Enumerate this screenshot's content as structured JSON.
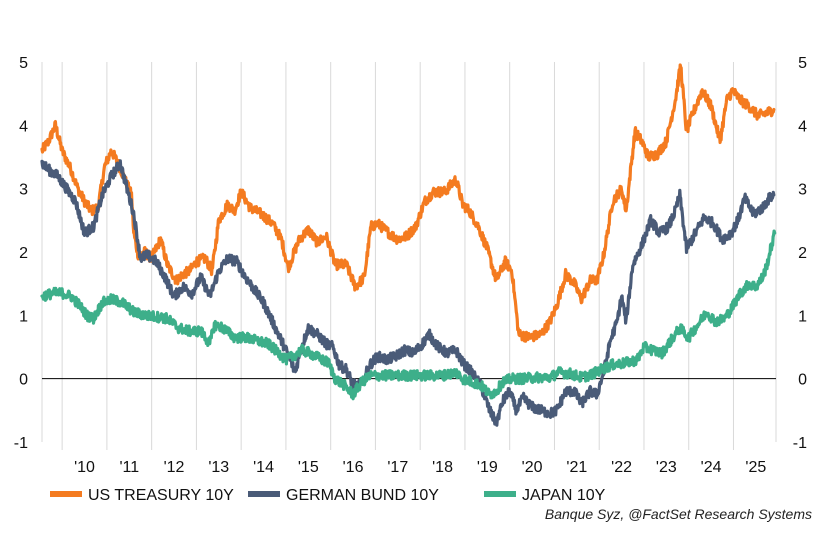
{
  "chart_data": {
    "type": "line",
    "title": "",
    "xlabel": "",
    "ylabel": "",
    "ylim": [
      -1,
      5
    ],
    "xlim": [
      2009.55,
      2025.95
    ],
    "y_ticks": [
      "-1",
      "0",
      "1",
      "2",
      "3",
      "4",
      "5"
    ],
    "x_ticks": [
      "'10",
      "'11",
      "'12",
      "'13",
      "'14",
      "'15",
      "'16",
      "'17",
      "'18",
      "'19",
      "'20",
      "'21",
      "'22",
      "'23",
      "'24",
      "'25"
    ],
    "grid": "vertical",
    "legend_position": "bottom-left",
    "source": "Banque Syz, @FactSet Research Systems",
    "series": [
      {
        "name": "US TREASURY 10Y",
        "color": "#F47B20",
        "points": [
          [
            2009.55,
            3.6
          ],
          [
            2009.7,
            3.75
          ],
          [
            2009.85,
            4.0
          ],
          [
            2010.0,
            3.6
          ],
          [
            2010.2,
            3.3
          ],
          [
            2010.35,
            3.0
          ],
          [
            2010.5,
            2.8
          ],
          [
            2010.65,
            2.65
          ],
          [
            2010.8,
            2.7
          ],
          [
            2010.95,
            3.35
          ],
          [
            2011.1,
            3.6
          ],
          [
            2011.25,
            3.4
          ],
          [
            2011.4,
            3.15
          ],
          [
            2011.55,
            2.9
          ],
          [
            2011.6,
            2.3
          ],
          [
            2011.7,
            1.95
          ],
          [
            2011.85,
            2.0
          ],
          [
            2012.0,
            1.9
          ],
          [
            2012.2,
            2.2
          ],
          [
            2012.35,
            1.8
          ],
          [
            2012.55,
            1.55
          ],
          [
            2012.7,
            1.65
          ],
          [
            2012.85,
            1.7
          ],
          [
            2013.0,
            1.85
          ],
          [
            2013.2,
            1.9
          ],
          [
            2013.35,
            1.7
          ],
          [
            2013.5,
            2.5
          ],
          [
            2013.7,
            2.75
          ],
          [
            2013.85,
            2.65
          ],
          [
            2014.0,
            2.95
          ],
          [
            2014.2,
            2.7
          ],
          [
            2014.45,
            2.6
          ],
          [
            2014.7,
            2.45
          ],
          [
            2014.9,
            2.2
          ],
          [
            2015.05,
            1.75
          ],
          [
            2015.3,
            2.2
          ],
          [
            2015.5,
            2.35
          ],
          [
            2015.7,
            2.15
          ],
          [
            2015.9,
            2.25
          ],
          [
            2016.1,
            1.8
          ],
          [
            2016.35,
            1.8
          ],
          [
            2016.55,
            1.45
          ],
          [
            2016.75,
            1.6
          ],
          [
            2016.9,
            2.4
          ],
          [
            2017.05,
            2.45
          ],
          [
            2017.3,
            2.3
          ],
          [
            2017.5,
            2.2
          ],
          [
            2017.7,
            2.25
          ],
          [
            2017.9,
            2.4
          ],
          [
            2018.1,
            2.8
          ],
          [
            2018.3,
            2.95
          ],
          [
            2018.55,
            2.95
          ],
          [
            2018.8,
            3.15
          ],
          [
            2018.95,
            2.75
          ],
          [
            2019.1,
            2.65
          ],
          [
            2019.3,
            2.4
          ],
          [
            2019.5,
            2.05
          ],
          [
            2019.7,
            1.55
          ],
          [
            2019.9,
            1.85
          ],
          [
            2020.05,
            1.7
          ],
          [
            2020.2,
            0.7
          ],
          [
            2020.45,
            0.65
          ],
          [
            2020.7,
            0.7
          ],
          [
            2020.9,
            0.9
          ],
          [
            2021.05,
            1.15
          ],
          [
            2021.25,
            1.65
          ],
          [
            2021.45,
            1.5
          ],
          [
            2021.6,
            1.25
          ],
          [
            2021.8,
            1.55
          ],
          [
            2021.95,
            1.55
          ],
          [
            2022.1,
            1.95
          ],
          [
            2022.3,
            2.8
          ],
          [
            2022.5,
            3.0
          ],
          [
            2022.6,
            2.65
          ],
          [
            2022.8,
            3.9
          ],
          [
            2022.95,
            3.75
          ],
          [
            2023.1,
            3.5
          ],
          [
            2023.3,
            3.55
          ],
          [
            2023.5,
            3.75
          ],
          [
            2023.7,
            4.4
          ],
          [
            2023.82,
            4.95
          ],
          [
            2023.95,
            3.9
          ],
          [
            2024.1,
            4.2
          ],
          [
            2024.3,
            4.55
          ],
          [
            2024.5,
            4.3
          ],
          [
            2024.7,
            3.75
          ],
          [
            2024.85,
            4.4
          ],
          [
            2024.98,
            4.55
          ],
          [
            2025.15,
            4.4
          ],
          [
            2025.35,
            4.3
          ],
          [
            2025.55,
            4.15
          ],
          [
            2025.75,
            4.2
          ],
          [
            2025.9,
            4.25
          ]
        ]
      },
      {
        "name": "GERMAN BUND 10Y",
        "color": "#4A5B78",
        "points": [
          [
            2009.55,
            3.4
          ],
          [
            2009.7,
            3.3
          ],
          [
            2009.9,
            3.2
          ],
          [
            2010.1,
            3.0
          ],
          [
            2010.3,
            2.8
          ],
          [
            2010.5,
            2.3
          ],
          [
            2010.7,
            2.4
          ],
          [
            2010.9,
            2.9
          ],
          [
            2011.1,
            3.2
          ],
          [
            2011.3,
            3.4
          ],
          [
            2011.45,
            3.0
          ],
          [
            2011.6,
            2.6
          ],
          [
            2011.75,
            1.9
          ],
          [
            2011.9,
            1.95
          ],
          [
            2012.1,
            1.85
          ],
          [
            2012.3,
            1.6
          ],
          [
            2012.5,
            1.3
          ],
          [
            2012.7,
            1.45
          ],
          [
            2012.9,
            1.35
          ],
          [
            2013.1,
            1.6
          ],
          [
            2013.3,
            1.3
          ],
          [
            2013.5,
            1.7
          ],
          [
            2013.7,
            1.9
          ],
          [
            2013.9,
            1.85
          ],
          [
            2014.1,
            1.6
          ],
          [
            2014.3,
            1.4
          ],
          [
            2014.5,
            1.2
          ],
          [
            2014.7,
            0.9
          ],
          [
            2014.9,
            0.6
          ],
          [
            2015.1,
            0.3
          ],
          [
            2015.2,
            0.1
          ],
          [
            2015.35,
            0.5
          ],
          [
            2015.5,
            0.8
          ],
          [
            2015.7,
            0.7
          ],
          [
            2015.9,
            0.55
          ],
          [
            2016.05,
            0.5
          ],
          [
            2016.2,
            0.2
          ],
          [
            2016.35,
            0.15
          ],
          [
            2016.5,
            -0.1
          ],
          [
            2016.7,
            -0.1
          ],
          [
            2016.85,
            0.2
          ],
          [
            2017.05,
            0.35
          ],
          [
            2017.25,
            0.3
          ],
          [
            2017.45,
            0.35
          ],
          [
            2017.65,
            0.45
          ],
          [
            2017.85,
            0.4
          ],
          [
            2018.05,
            0.55
          ],
          [
            2018.2,
            0.7
          ],
          [
            2018.4,
            0.5
          ],
          [
            2018.6,
            0.4
          ],
          [
            2018.8,
            0.45
          ],
          [
            2018.95,
            0.25
          ],
          [
            2019.15,
            0.1
          ],
          [
            2019.35,
            -0.1
          ],
          [
            2019.55,
            -0.5
          ],
          [
            2019.7,
            -0.7
          ],
          [
            2019.85,
            -0.35
          ],
          [
            2020.0,
            -0.2
          ],
          [
            2020.15,
            -0.5
          ],
          [
            2020.3,
            -0.3
          ],
          [
            2020.5,
            -0.45
          ],
          [
            2020.7,
            -0.5
          ],
          [
            2020.9,
            -0.55
          ],
          [
            2021.05,
            -0.5
          ],
          [
            2021.25,
            -0.2
          ],
          [
            2021.45,
            -0.2
          ],
          [
            2021.6,
            -0.4
          ],
          [
            2021.8,
            -0.2
          ],
          [
            2021.95,
            -0.25
          ],
          [
            2022.1,
            0.1
          ],
          [
            2022.25,
            0.6
          ],
          [
            2022.4,
            0.9
          ],
          [
            2022.5,
            1.3
          ],
          [
            2022.6,
            0.9
          ],
          [
            2022.75,
            1.8
          ],
          [
            2022.95,
            2.1
          ],
          [
            2023.15,
            2.5
          ],
          [
            2023.35,
            2.3
          ],
          [
            2023.55,
            2.4
          ],
          [
            2023.7,
            2.65
          ],
          [
            2023.8,
            2.9
          ],
          [
            2023.95,
            2.05
          ],
          [
            2024.15,
            2.3
          ],
          [
            2024.35,
            2.55
          ],
          [
            2024.55,
            2.45
          ],
          [
            2024.75,
            2.2
          ],
          [
            2024.95,
            2.3
          ],
          [
            2025.1,
            2.5
          ],
          [
            2025.25,
            2.85
          ],
          [
            2025.45,
            2.6
          ],
          [
            2025.65,
            2.7
          ],
          [
            2025.8,
            2.85
          ],
          [
            2025.9,
            2.9
          ]
        ]
      },
      {
        "name": "JAPAN 10Y",
        "color": "#3DAF8A",
        "points": [
          [
            2009.55,
            1.3
          ],
          [
            2009.8,
            1.35
          ],
          [
            2010.0,
            1.35
          ],
          [
            2010.2,
            1.3
          ],
          [
            2010.4,
            1.15
          ],
          [
            2010.55,
            1.0
          ],
          [
            2010.7,
            0.95
          ],
          [
            2010.9,
            1.2
          ],
          [
            2011.1,
            1.25
          ],
          [
            2011.35,
            1.2
          ],
          [
            2011.6,
            1.05
          ],
          [
            2011.85,
            1.0
          ],
          [
            2012.1,
            0.98
          ],
          [
            2012.35,
            0.95
          ],
          [
            2012.6,
            0.8
          ],
          [
            2012.85,
            0.75
          ],
          [
            2013.1,
            0.75
          ],
          [
            2013.3,
            0.55
          ],
          [
            2013.4,
            0.85
          ],
          [
            2013.6,
            0.8
          ],
          [
            2013.85,
            0.65
          ],
          [
            2014.1,
            0.65
          ],
          [
            2014.35,
            0.6
          ],
          [
            2014.6,
            0.55
          ],
          [
            2014.85,
            0.4
          ],
          [
            2015.0,
            0.3
          ],
          [
            2015.15,
            0.35
          ],
          [
            2015.35,
            0.45
          ],
          [
            2015.55,
            0.4
          ],
          [
            2015.8,
            0.3
          ],
          [
            2015.95,
            0.25
          ],
          [
            2016.1,
            0.0
          ],
          [
            2016.3,
            -0.1
          ],
          [
            2016.5,
            -0.25
          ],
          [
            2016.7,
            -0.05
          ],
          [
            2016.9,
            0.05
          ],
          [
            2017.1,
            0.05
          ],
          [
            2017.4,
            0.05
          ],
          [
            2017.7,
            0.05
          ],
          [
            2017.9,
            0.05
          ],
          [
            2018.2,
            0.05
          ],
          [
            2018.5,
            0.05
          ],
          [
            2018.8,
            0.1
          ],
          [
            2018.95,
            0.0
          ],
          [
            2019.15,
            -0.05
          ],
          [
            2019.35,
            -0.1
          ],
          [
            2019.55,
            -0.25
          ],
          [
            2019.7,
            -0.2
          ],
          [
            2019.85,
            -0.05
          ],
          [
            2020.05,
            0.0
          ],
          [
            2020.3,
            0.0
          ],
          [
            2020.6,
            0.02
          ],
          [
            2020.9,
            0.02
          ],
          [
            2021.1,
            0.1
          ],
          [
            2021.35,
            0.08
          ],
          [
            2021.6,
            0.02
          ],
          [
            2021.85,
            0.07
          ],
          [
            2022.05,
            0.15
          ],
          [
            2022.3,
            0.22
          ],
          [
            2022.6,
            0.25
          ],
          [
            2022.85,
            0.3
          ],
          [
            2023.0,
            0.5
          ],
          [
            2023.2,
            0.45
          ],
          [
            2023.4,
            0.4
          ],
          [
            2023.6,
            0.6
          ],
          [
            2023.8,
            0.8
          ],
          [
            2024.0,
            0.65
          ],
          [
            2024.2,
            0.85
          ],
          [
            2024.4,
            1.05
          ],
          [
            2024.6,
            0.9
          ],
          [
            2024.8,
            0.95
          ],
          [
            2024.95,
            1.1
          ],
          [
            2025.15,
            1.35
          ],
          [
            2025.35,
            1.5
          ],
          [
            2025.5,
            1.45
          ],
          [
            2025.65,
            1.6
          ],
          [
            2025.75,
            1.8
          ],
          [
            2025.85,
            2.1
          ],
          [
            2025.92,
            2.3
          ]
        ]
      }
    ]
  }
}
